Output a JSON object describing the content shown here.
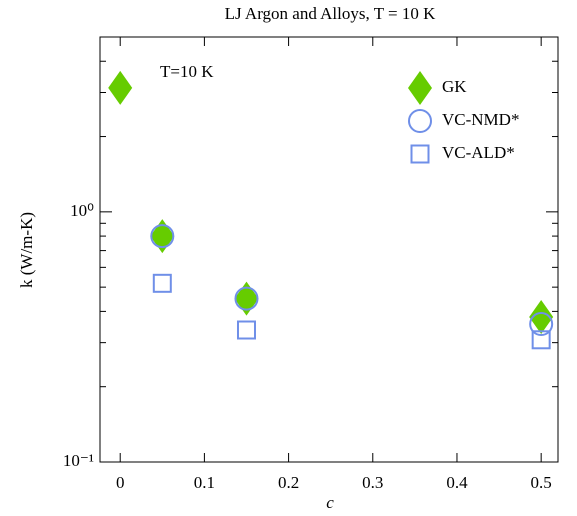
{
  "chart_data": {
    "type": "scatter",
    "title": "LJ Argon and Alloys, T = 10 K",
    "annotation": "T=10 K",
    "x_label": "c",
    "y_label": "k (W/m-K)",
    "xlim": [
      -0.024,
      0.52
    ],
    "xticks": [
      0,
      0.1,
      0.2,
      0.3,
      0.4,
      0.5
    ],
    "ylim": [
      0.1,
      5
    ],
    "log_y": true,
    "yticks": [
      {
        "value": 0.1,
        "label": "10⁻¹"
      },
      {
        "value": 1,
        "label": "10⁰"
      }
    ],
    "yminor": [
      0.2,
      0.3,
      0.4,
      0.5,
      0.6,
      0.7,
      0.8,
      0.9,
      2,
      3,
      4
    ],
    "legend": "top-right",
    "series": [
      {
        "name": "GK",
        "marker": "diamond",
        "color": "#66cc00",
        "x": [
          0,
          0.05,
          0.15,
          0.5
        ],
        "values": [
          3.13,
          0.8,
          0.45,
          0.38
        ]
      },
      {
        "name": "VC-NMD*",
        "marker": "circle",
        "color": "#6f8fe8",
        "x": [
          0.05,
          0.15,
          0.5
        ],
        "values": [
          0.8,
          0.45,
          0.356
        ]
      },
      {
        "name": "VC-ALD*",
        "marker": "square",
        "color": "#6f8fe8",
        "x": [
          0.05,
          0.15,
          0.5
        ],
        "values": [
          0.518,
          0.337,
          0.308
        ]
      }
    ]
  }
}
